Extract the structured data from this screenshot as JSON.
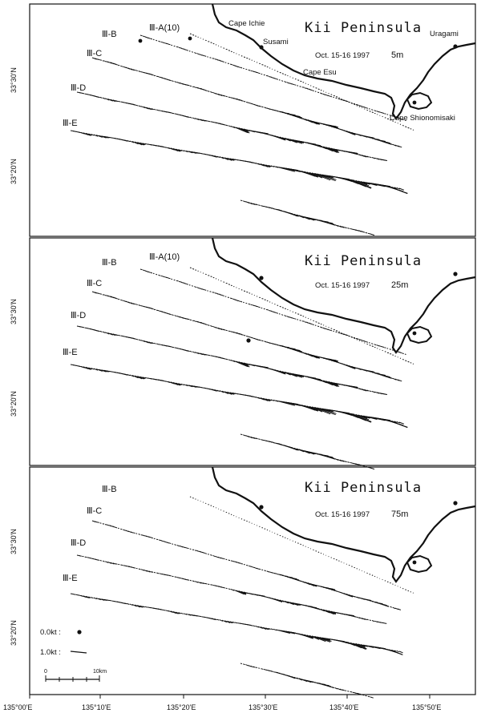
{
  "figure": {
    "region_title": "Kii Peninsula",
    "date": "Oct. 15-16 1997",
    "x_ticks": [
      "135°00'E",
      "135°10'E",
      "135°20'E",
      "135°30'E",
      "135°40'E",
      "135°50'E"
    ],
    "y_ticks": [
      "33°30'N",
      "33°20'N"
    ],
    "panels": [
      {
        "depth": "5m",
        "track_labels": [
          "Ⅲ-A(10)",
          "Ⅲ-B",
          "Ⅲ-C",
          "Ⅲ-D",
          "Ⅲ-E"
        ],
        "place_labels": [
          "Cape Ichie",
          "Susami",
          "Cape Esu",
          "Uragami",
          "Cape Shionomisaki"
        ]
      },
      {
        "depth": "25m",
        "track_labels": [
          "Ⅲ-A(10)",
          "Ⅲ-B",
          "Ⅲ-C",
          "Ⅲ-D",
          "Ⅲ-E"
        ],
        "place_labels": []
      },
      {
        "depth": "75m",
        "track_labels": [
          "Ⅲ-B",
          "Ⅲ-C",
          "Ⅲ-D",
          "Ⅲ-E"
        ],
        "place_labels": []
      }
    ],
    "legend": {
      "zero": "0.0kt :",
      "one": "1.0kt :",
      "scale_start": "0",
      "scale_end": "10km"
    }
  }
}
